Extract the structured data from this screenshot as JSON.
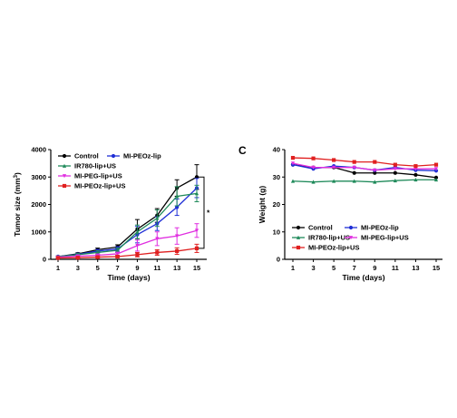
{
  "panel_c_letter": "C",
  "colors": {
    "Control": "#000000",
    "MI-PEOz-lip": "#1f2fd6",
    "IR780-lip+US": "#1f8a5a",
    "MI-PEG-lip+US": "#e02ee0",
    "MI-PEOz-lip+US": "#e02020"
  },
  "chart_data": [
    {
      "type": "line",
      "xlabel": "Time (days)",
      "ylabel_main": "Tumor size (mm",
      "ylabel_sup": "3",
      "ylabel_end": ")",
      "x": [
        1,
        3,
        5,
        7,
        9,
        11,
        13,
        15
      ],
      "xticks": [
        "1",
        "3",
        "5",
        "7",
        "9",
        "11",
        "13",
        "15"
      ],
      "ylim": [
        0,
        4000
      ],
      "yticks": [
        "0",
        "1000",
        "2000",
        "3000",
        "4000"
      ],
      "yticks_values": [
        0,
        1000,
        2000,
        3000,
        4000
      ],
      "significance": "*",
      "legend_order": [
        "Control",
        "MI-PEOz-lip",
        "IR780-lip+US",
        "MI-PEG-lip+US",
        "MI-PEOz-lip+US"
      ],
      "series": [
        {
          "name": "Control",
          "values": [
            100,
            200,
            350,
            450,
            1100,
            1600,
            2600,
            3000
          ],
          "errors": [
            20,
            40,
            60,
            80,
            350,
            250,
            300,
            450
          ]
        },
        {
          "name": "MI-PEOz-lip",
          "values": [
            100,
            180,
            300,
            380,
            900,
            1300,
            1900,
            2600
          ],
          "errors": [
            20,
            40,
            60,
            80,
            300,
            250,
            300,
            350
          ]
        },
        {
          "name": "IR780-lip+US",
          "values": [
            100,
            170,
            250,
            330,
            1000,
            1500,
            2300,
            2400
          ],
          "errors": [
            20,
            40,
            60,
            80,
            250,
            300,
            350,
            300
          ]
        },
        {
          "name": "MI-PEG-lip+US",
          "values": [
            80,
            120,
            150,
            200,
            500,
            750,
            850,
            1050
          ],
          "errors": [
            15,
            30,
            40,
            60,
            200,
            250,
            300,
            250
          ]
        },
        {
          "name": "MI-PEOz-lip+US",
          "values": [
            50,
            60,
            80,
            100,
            170,
            250,
            300,
            400
          ],
          "errors": [
            10,
            20,
            30,
            40,
            80,
            100,
            120,
            150
          ]
        }
      ]
    },
    {
      "type": "line",
      "xlabel": "Time (days)",
      "ylabel": "Weight (g)",
      "x": [
        1,
        3,
        5,
        7,
        9,
        11,
        13,
        15
      ],
      "xticks": [
        "1",
        "3",
        "5",
        "7",
        "9",
        "11",
        "13",
        "15"
      ],
      "ylim": [
        0,
        40
      ],
      "yticks": [
        "0",
        "10",
        "20",
        "30",
        "40"
      ],
      "yticks_values": [
        0,
        10,
        20,
        30,
        40
      ],
      "legend_order": [
        "Control",
        "MI-PEOz-lip",
        "IR780-lip+US",
        "MI-PEG-lip+US",
        "MI-PEOz-lip+US"
      ],
      "series": [
        {
          "name": "Control",
          "values": [
            34.5,
            33.5,
            33.5,
            31.5,
            31.5,
            31.5,
            30.8,
            29.8
          ]
        },
        {
          "name": "MI-PEOz-lip",
          "values": [
            34.5,
            33.0,
            34.0,
            33.5,
            32.5,
            33.5,
            32.5,
            32.3
          ]
        },
        {
          "name": "IR780-lip+US",
          "values": [
            28.5,
            28.2,
            28.5,
            28.5,
            28.2,
            28.7,
            29.0,
            29.0
          ]
        },
        {
          "name": "MI-PEG-lip+US",
          "values": [
            35.0,
            33.5,
            33.5,
            33.5,
            32.5,
            33.0,
            33.0,
            33.0
          ]
        },
        {
          "name": "MI-PEOz-lip+US",
          "values": [
            37.0,
            36.8,
            36.2,
            35.5,
            35.5,
            34.5,
            34.0,
            34.5
          ]
        }
      ]
    }
  ]
}
